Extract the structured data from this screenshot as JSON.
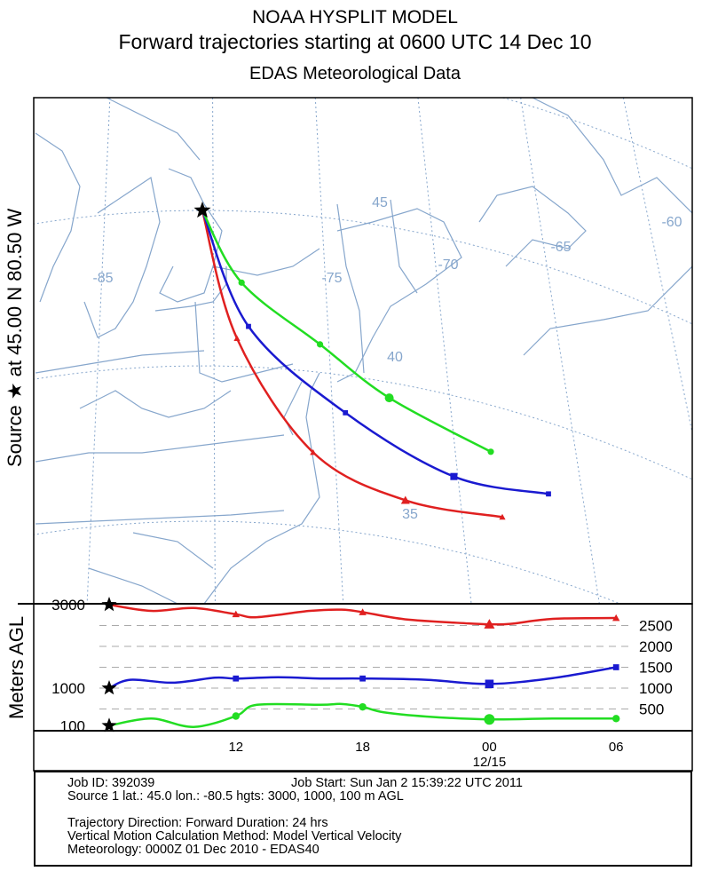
{
  "header": {
    "title": "NOAA HYSPLIT MODEL",
    "subtitle": "Forward trajectories starting at 0600 UTC 14 Dec 10",
    "data_source": "EDAS Meteorological Data"
  },
  "side_label": "Source ★ at   45.00 N   80.50 W",
  "profile_ylabel": "Meters AGL",
  "chart_data": {
    "type": "line",
    "title": "Forward trajectories starting at 0600 UTC 14 Dec 10",
    "source": {
      "lat": 45.0,
      "lon": -80.5
    },
    "map_grid": {
      "lon_labels": [
        "-85",
        "-75",
        "-70",
        "-65",
        "-60"
      ],
      "lat_labels": [
        "45",
        "40",
        "35"
      ]
    },
    "series": [
      {
        "name": "3000 m AGL",
        "color": "#e02020",
        "marker": "triangle",
        "track": [
          [
            -80.5,
            45.0
          ],
          [
            -79.0,
            40.9
          ],
          [
            -75.7,
            37.4
          ],
          [
            -71.7,
            36.3
          ],
          [
            -67.5,
            36.5
          ]
        ],
        "heights_hours": [
          0,
          2,
          4,
          6,
          7,
          9.5,
          11,
          12,
          14,
          17,
          18,
          19,
          21,
          24
        ],
        "heights": [
          3000,
          2850,
          2920,
          2770,
          2700,
          2850,
          2880,
          2820,
          2650,
          2550,
          2530,
          2540,
          2660,
          2680
        ]
      },
      {
        "name": "1000 m AGL",
        "color": "#1a1ad0",
        "marker": "square",
        "track": [
          [
            -80.5,
            45.0
          ],
          [
            -78.5,
            41.3
          ],
          [
            -74.3,
            38.8
          ],
          [
            -69.6,
            37.4
          ],
          [
            -65.5,
            37.7
          ]
        ],
        "heights_hours": [
          0,
          1,
          3,
          5,
          6,
          8,
          10,
          12,
          15,
          18,
          21,
          24
        ],
        "heights": [
          1000,
          1200,
          1130,
          1250,
          1230,
          1260,
          1230,
          1230,
          1200,
          1100,
          1240,
          1500
        ]
      },
      {
        "name": "100 m AGL",
        "color": "#22dd22",
        "marker": "circle",
        "track": [
          [
            -80.5,
            45.0
          ],
          [
            -78.8,
            42.7
          ],
          [
            -75.4,
            40.9
          ],
          [
            -72.4,
            39.5
          ],
          [
            -68.0,
            38.5
          ]
        ],
        "heights_hours": [
          0,
          2,
          4,
          6,
          7,
          10,
          11,
          12,
          13,
          15,
          18,
          21,
          24
        ],
        "heights": [
          100,
          270,
          70,
          330,
          600,
          600,
          620,
          550,
          420,
          320,
          250,
          270,
          270
        ]
      }
    ],
    "marker_hours": [
      6,
      12,
      18,
      24
    ],
    "source_heights": [
      "3000",
      "1000",
      "100"
    ],
    "profile_yticks": [
      "2500",
      "2000",
      "1500",
      "1000",
      "500"
    ],
    "time_ticks": [
      "12",
      "18",
      "00",
      "06"
    ],
    "date_label": "12/15"
  },
  "info": {
    "job_id": "Job ID: 392039",
    "job_start": "Job Start: Sun Jan  2 15:39:22 UTC 2011",
    "source_line": "Source 1 lat.: 45.0  lon.: -80.5  hgts: 3000, 1000, 100 m AGL",
    "direction": "Trajectory Direction: Forward      Duration: 24 hrs",
    "vertical": "Vertical Motion Calculation Method:       Model Vertical Velocity",
    "meteorology": "Meteorology: 0000Z 01 Dec 2010 - EDAS40"
  }
}
